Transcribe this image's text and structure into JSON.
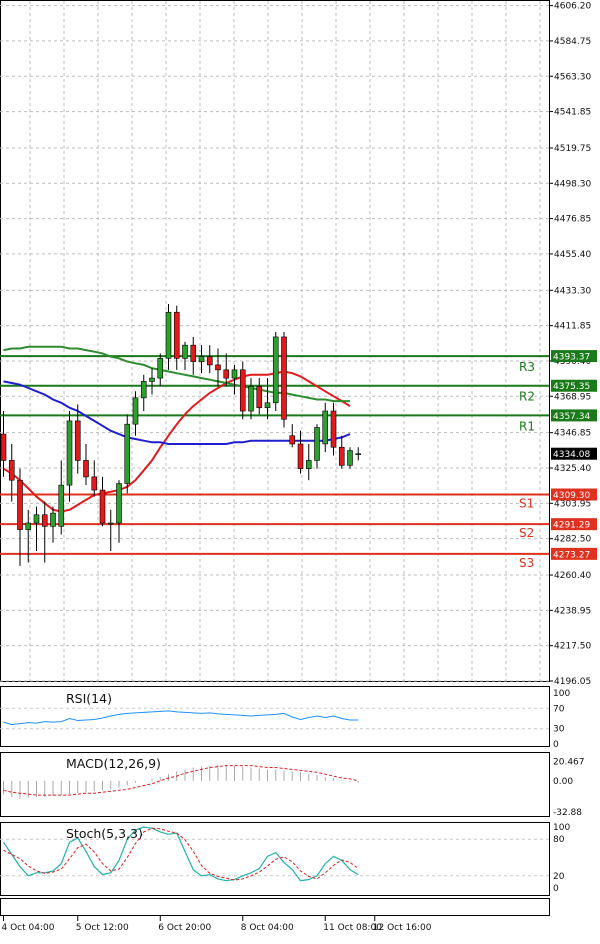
{
  "chart_data": {
    "type": "candlestick",
    "main": {
      "ylim": [
        4196.05,
        4609
      ],
      "y_ticks": [
        4606.2,
        4584.75,
        4563.3,
        4541.85,
        4519.75,
        4498.3,
        4476.85,
        4455.4,
        4433.3,
        4411.85,
        4390.4,
        4368.95,
        4346.85,
        4325.4,
        4303.95,
        4282.5,
        4260.4,
        4238.95,
        4217.5,
        4196.05
      ],
      "y_tick_labels": [
        "4606.20",
        "4584.75",
        "4563.30",
        "4541.85",
        "4519.75",
        "4498.30",
        "4476.85",
        "4455.40",
        "4433.30",
        "4411.85",
        "4390.40",
        "4368.95",
        "4346.85",
        "4325.40",
        "4303.95",
        "4282.50",
        "4260.40",
        "4238.95",
        "4217.50",
        "4196.05"
      ],
      "grid": true,
      "candles": [
        {
          "o": 4346,
          "h": 4360,
          "l": 4320,
          "c": 4330
        },
        {
          "o": 4330,
          "h": 4340,
          "l": 4305,
          "c": 4318
        },
        {
          "o": 4318,
          "h": 4325,
          "l": 4266,
          "c": 4288
        },
        {
          "o": 4288,
          "h": 4300,
          "l": 4268,
          "c": 4292
        },
        {
          "o": 4292,
          "h": 4302,
          "l": 4275,
          "c": 4297
        },
        {
          "o": 4297,
          "h": 4305,
          "l": 4268,
          "c": 4290
        },
        {
          "o": 4290,
          "h": 4302,
          "l": 4280,
          "c": 4298
        },
        {
          "o": 4290,
          "h": 4330,
          "l": 4285,
          "c": 4315
        },
        {
          "o": 4315,
          "h": 4360,
          "l": 4305,
          "c": 4354
        },
        {
          "o": 4354,
          "h": 4364,
          "l": 4322,
          "c": 4330
        },
        {
          "o": 4330,
          "h": 4340,
          "l": 4315,
          "c": 4320
        },
        {
          "o": 4320,
          "h": 4330,
          "l": 4308,
          "c": 4312
        },
        {
          "o": 4312,
          "h": 4320,
          "l": 4290,
          "c": 4292
        },
        {
          "o": 4292,
          "h": 4300,
          "l": 4275,
          "c": 4292
        },
        {
          "o": 4292,
          "h": 4318,
          "l": 4280,
          "c": 4316
        },
        {
          "o": 4316,
          "h": 4358,
          "l": 4310,
          "c": 4352
        },
        {
          "o": 4352,
          "h": 4372,
          "l": 4345,
          "c": 4368
        },
        {
          "o": 4368,
          "h": 4382,
          "l": 4360,
          "c": 4378
        },
        {
          "o": 4378,
          "h": 4386,
          "l": 4370,
          "c": 4380
        },
        {
          "o": 4380,
          "h": 4395,
          "l": 4375,
          "c": 4392
        },
        {
          "o": 4392,
          "h": 4425,
          "l": 4385,
          "c": 4420
        },
        {
          "o": 4420,
          "h": 4424,
          "l": 4385,
          "c": 4392
        },
        {
          "o": 4392,
          "h": 4402,
          "l": 4385,
          "c": 4400
        },
        {
          "o": 4400,
          "h": 4405,
          "l": 4382,
          "c": 4390
        },
        {
          "o": 4390,
          "h": 4400,
          "l": 4383,
          "c": 4393
        },
        {
          "o": 4393,
          "h": 4400,
          "l": 4383,
          "c": 4388
        },
        {
          "o": 4388,
          "h": 4398,
          "l": 4375,
          "c": 4385
        },
        {
          "o": 4385,
          "h": 4395,
          "l": 4375,
          "c": 4380
        },
        {
          "o": 4380,
          "h": 4388,
          "l": 4370,
          "c": 4385
        },
        {
          "o": 4385,
          "h": 4390,
          "l": 4355,
          "c": 4360
        },
        {
          "o": 4360,
          "h": 4380,
          "l": 4355,
          "c": 4375
        },
        {
          "o": 4375,
          "h": 4380,
          "l": 4358,
          "c": 4362
        },
        {
          "o": 4362,
          "h": 4380,
          "l": 4355,
          "c": 4365
        },
        {
          "o": 4365,
          "h": 4408,
          "l": 4360,
          "c": 4405
        },
        {
          "o": 4405,
          "h": 4408,
          "l": 4350,
          "c": 4355
        },
        {
          "o": 4345,
          "h": 4352,
          "l": 4338,
          "c": 4340
        },
        {
          "o": 4340,
          "h": 4348,
          "l": 4322,
          "c": 4325
        },
        {
          "o": 4325,
          "h": 4340,
          "l": 4318,
          "c": 4330
        },
        {
          "o": 4330,
          "h": 4352,
          "l": 4325,
          "c": 4350
        },
        {
          "o": 4340,
          "h": 4365,
          "l": 4335,
          "c": 4360
        },
        {
          "o": 4360,
          "h": 4365,
          "l": 4333,
          "c": 4338
        },
        {
          "o": 4338,
          "h": 4345,
          "l": 4325,
          "c": 4327
        },
        {
          "o": 4327,
          "h": 4338,
          "l": 4325,
          "c": 4336
        },
        {
          "o": 4334,
          "h": 4338,
          "l": 4330,
          "c": 4334.08
        }
      ],
      "series": [
        {
          "name": "",
          "color": "#e31a1c",
          "values": [
            4325,
            4322,
            4318,
            4313,
            4308,
            4304,
            4300,
            4299,
            4300,
            4303,
            4306,
            4309,
            4310,
            4311,
            4312,
            4314,
            4318,
            4324,
            4330,
            4338,
            4345,
            4352,
            4358,
            4363,
            4367,
            4371,
            4374,
            4377,
            4379,
            4381,
            4382,
            4382,
            4382,
            4383,
            4384,
            4383,
            4381,
            4378,
            4375,
            4372,
            4369,
            4366,
            4363,
            null
          ]
        },
        {
          "name": "",
          "color": "#1f1fcf",
          "values": [
            4378,
            4377,
            4376,
            4374,
            4372,
            4370,
            4367,
            4365,
            4362,
            4360,
            4357,
            4354,
            4351,
            4348,
            4346,
            4344,
            4343,
            4342,
            4341,
            4341,
            4340,
            4340,
            4340,
            4340,
            4340,
            4340,
            4340,
            4340,
            4341,
            4341,
            4342,
            4342,
            4342,
            4342,
            4342,
            4342,
            4342,
            4342,
            4342,
            4342,
            4343,
            4344,
            4346,
            null
          ]
        },
        {
          "name": "",
          "color": "#2e8b2e",
          "values": [
            4397,
            4398,
            4398,
            4399,
            4399,
            4399,
            4399,
            4399,
            4398,
            4398,
            4397,
            4396,
            4395,
            4393,
            4392,
            4390,
            4389,
            4388,
            4386,
            4385,
            4384,
            4383,
            4382,
            4381,
            4380,
            4379,
            4378,
            4377,
            4376,
            4375,
            4374,
            4373,
            4372,
            4371,
            4371,
            4370,
            4369,
            4368,
            4367,
            4367,
            4366,
            4366,
            4366,
            null
          ]
        }
      ],
      "levels": [
        {
          "label": "R3",
          "value": 4393.37,
          "tag": "4393.37",
          "color": "#1a7a1a"
        },
        {
          "label": "R2",
          "value": 4375.35,
          "tag": "4375.35",
          "color": "#1a7a1a"
        },
        {
          "label": "R1",
          "value": 4357.34,
          "tag": "4357.34",
          "color": "#1a7a1a"
        },
        {
          "label": "S1",
          "value": 4309.3,
          "tag": "4309.30",
          "color": "#e0301e"
        },
        {
          "label": "S2",
          "value": 4291.29,
          "tag": "4291.29",
          "color": "#e0301e"
        },
        {
          "label": "S3",
          "value": 4273.27,
          "tag": "4273.27",
          "color": "#e0301e"
        }
      ],
      "last_price": 4334.08,
      "last_price_tag": "4334.08"
    },
    "rsi": {
      "title": "RSI(14)",
      "ylim": [
        0,
        100
      ],
      "y_tick_labels": [
        "100",
        "70",
        "30",
        "0"
      ],
      "y_ticks": [
        100,
        70,
        30,
        0
      ],
      "color": "#1e90ff",
      "values": [
        43,
        38,
        40,
        42,
        41,
        44,
        43,
        44,
        50,
        46,
        47,
        48,
        51,
        55,
        58,
        60,
        61,
        62,
        63,
        64,
        65,
        63,
        62,
        61,
        60,
        61,
        59,
        58,
        57,
        56,
        55,
        56,
        57,
        58,
        60,
        53,
        48,
        52,
        55,
        52,
        55,
        50,
        47,
        47
      ]
    },
    "macd": {
      "title": "MACD(12,26,9)",
      "y_tick_labels": [
        "20.467",
        "0.00",
        "-32.88"
      ],
      "y_ticks": [
        20.467,
        0,
        -32.88
      ],
      "ylim": [
        -36,
        23
      ],
      "histogram": [
        -14,
        -17,
        -19,
        -18,
        -17,
        -17,
        -16,
        -15,
        -14,
        -13,
        -12,
        -11,
        -10,
        -9,
        -7,
        -5,
        -2,
        0,
        2,
        4,
        7,
        10,
        12,
        14,
        15,
        16,
        17,
        17,
        16,
        15,
        14,
        13,
        12,
        12,
        11,
        10,
        9,
        7,
        6,
        4,
        3,
        1,
        -1,
        -2
      ],
      "signal": [
        -10,
        -12,
        -13,
        -14,
        -15,
        -15,
        -15,
        -15,
        -15,
        -14,
        -13,
        -13,
        -12,
        -11,
        -10,
        -9,
        -7,
        -5,
        -3,
        0,
        3,
        5,
        8,
        10,
        12,
        14,
        15,
        16,
        16,
        16,
        16,
        15,
        14,
        14,
        13,
        12,
        11,
        10,
        9,
        7,
        5,
        3,
        2,
        0
      ],
      "signal_color": "#e31a1c",
      "hist_color": "#a8a8a8"
    },
    "stoch": {
      "title": "Stoch(5,3,3)",
      "ylim": [
        0,
        100
      ],
      "y_tick_labels": [
        "100",
        "80",
        "20",
        "0"
      ],
      "y_ticks": [
        100,
        80,
        20,
        0
      ],
      "k": [
        75,
        55,
        35,
        20,
        25,
        25,
        28,
        40,
        75,
        82,
        60,
        35,
        22,
        25,
        45,
        80,
        95,
        100,
        98,
        92,
        88,
        90,
        60,
        30,
        20,
        22,
        15,
        12,
        14,
        20,
        25,
        32,
        52,
        58,
        42,
        30,
        12,
        14,
        20,
        40,
        52,
        45,
        30,
        22
      ],
      "d": [
        62,
        55,
        48,
        36,
        28,
        24,
        26,
        31,
        48,
        66,
        72,
        59,
        40,
        28,
        31,
        50,
        73,
        92,
        98,
        97,
        93,
        90,
        79,
        60,
        37,
        24,
        19,
        16,
        13,
        15,
        20,
        26,
        36,
        47,
        51,
        43,
        28,
        19,
        15,
        25,
        37,
        46,
        42,
        32
      ],
      "k_color": "#20b2aa",
      "d_color": "#e31a1c"
    },
    "x_tick_labels": [
      "4 Oct 04:00",
      "5 Oct 12:00",
      "6 Oct 20:00",
      "8 Oct 04:00",
      "11 Oct 08:00",
      "12 Oct 16:00"
    ],
    "x_tick_candles": [
      0,
      9,
      19,
      29,
      39,
      45
    ]
  }
}
